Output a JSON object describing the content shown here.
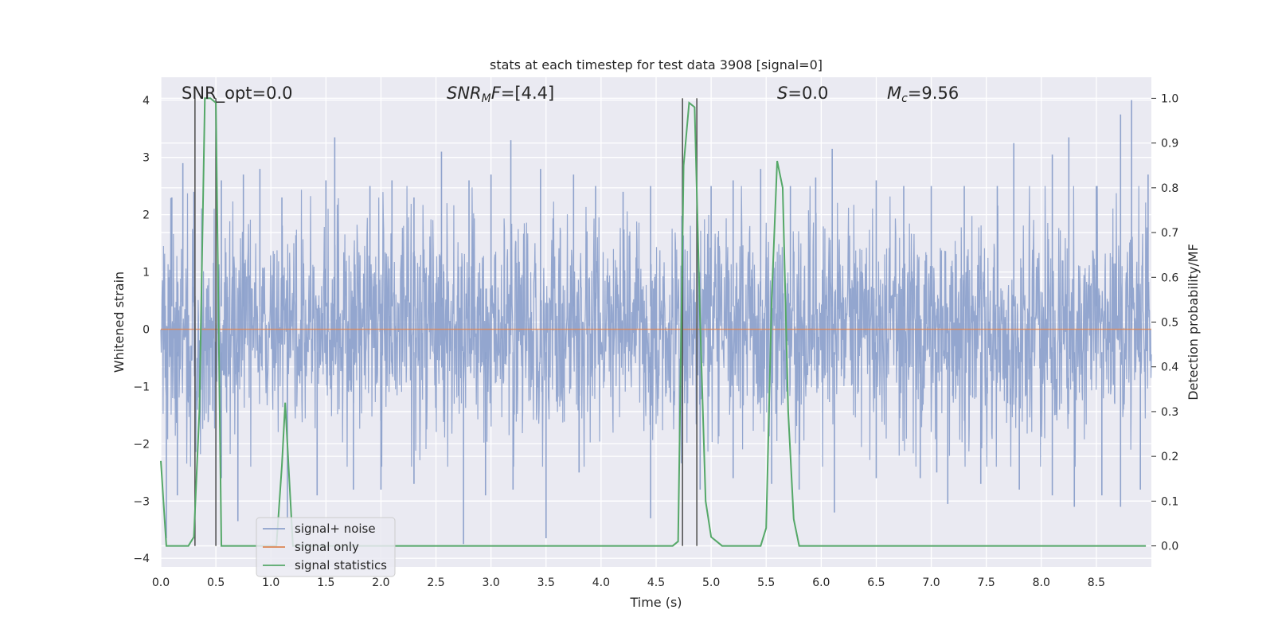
{
  "chart_data": {
    "type": "line",
    "title": "stats at each timestep for test data 3908 [signal=0]",
    "xlabel": "Time (s)",
    "ylabel_left": "Whitened strain",
    "ylabel_right": "Detection probability/MF",
    "xlim": [
      0.0,
      9.0
    ],
    "ylim_left": [
      -4.15,
      4.4
    ],
    "ylim_right": [
      -0.047,
      1.047
    ],
    "x_ticks": [
      "0.0",
      "0.5",
      "1.0",
      "1.5",
      "2.0",
      "2.5",
      "3.0",
      "3.5",
      "4.0",
      "4.5",
      "5.0",
      "5.5",
      "6.0",
      "6.5",
      "7.0",
      "7.5",
      "8.0",
      "8.5"
    ],
    "y_left_ticks": [
      "−4",
      "−3",
      "−2",
      "−1",
      "0",
      "1",
      "2",
      "3",
      "4"
    ],
    "y_right_ticks": [
      "0.0",
      "0.1",
      "0.2",
      "0.3",
      "0.4",
      "0.5",
      "0.6",
      "0.7",
      "0.8",
      "0.9",
      "1.0"
    ],
    "grid": true,
    "legend_position": "lower-left",
    "colors": {
      "background": "#eaeaf2",
      "grid": "#ffffff",
      "noise": "#8ea2cc",
      "signal_only": "#dd8452",
      "statistics": "#55a868",
      "markers": "#555555"
    },
    "annotations": [
      {
        "id": "snr_opt",
        "parts": [
          {
            "text": "SNR_opt=0.0",
            "italic": false
          }
        ]
      },
      {
        "id": "snr_mf",
        "parts": [
          {
            "text": "SNR",
            "italic": true
          },
          {
            "text": "M",
            "italic": true,
            "sub": true
          },
          {
            "text": "F",
            "italic": true
          },
          {
            "text": "=[4.4]",
            "italic": false
          }
        ]
      },
      {
        "id": "s_value",
        "parts": [
          {
            "text": "S",
            "italic": true
          },
          {
            "text": "=0.0",
            "italic": false
          }
        ]
      },
      {
        "id": "mc_value",
        "parts": [
          {
            "text": "M",
            "italic": true
          },
          {
            "text": "c",
            "italic": true,
            "sub": true
          },
          {
            "text": "=9.56",
            "italic": false
          }
        ]
      }
    ],
    "series": [
      {
        "name": "signal+ noise",
        "axis": "left",
        "style": "dense-noise",
        "amplitude_envelope": {
          "positive_typical": [
            1.7,
            2.6
          ],
          "negative_typical": [
            -1.5,
            -2.5
          ],
          "spikes_high": [
            [
              0.1,
              2.3
            ],
            [
              0.2,
              2.9
            ],
            [
              0.3,
              2.4
            ],
            [
              0.55,
              2.6
            ],
            [
              0.75,
              2.7
            ],
            [
              0.9,
              2.8
            ],
            [
              1.1,
              2.3
            ],
            [
              1.5,
              2.6
            ],
            [
              1.58,
              3.35
            ],
            [
              1.9,
              2.5
            ],
            [
              2.1,
              2.6
            ],
            [
              2.3,
              2.3
            ],
            [
              2.55,
              3.1
            ],
            [
              2.8,
              2.6
            ],
            [
              3.0,
              2.7
            ],
            [
              3.18,
              3.3
            ],
            [
              3.45,
              2.8
            ],
            [
              3.75,
              2.7
            ],
            [
              3.95,
              2.5
            ],
            [
              4.2,
              2.4
            ],
            [
              4.45,
              2.5
            ],
            [
              4.74,
              2.85
            ],
            [
              5.0,
              2.5
            ],
            [
              5.2,
              2.6
            ],
            [
              5.45,
              2.8
            ],
            [
              5.72,
              2.5
            ],
            [
              5.95,
              2.65
            ],
            [
              6.1,
              3.15
            ],
            [
              6.5,
              2.6
            ],
            [
              6.75,
              2.5
            ],
            [
              7.0,
              2.5
            ],
            [
              7.3,
              2.5
            ],
            [
              7.6,
              2.5
            ],
            [
              7.75,
              3.25
            ],
            [
              8.1,
              3.05
            ],
            [
              8.25,
              3.35
            ],
            [
              8.5,
              2.5
            ],
            [
              8.72,
              3.75
            ],
            [
              8.82,
              4.0
            ],
            [
              8.97,
              2.7
            ]
          ],
          "spikes_low": [
            [
              0.05,
              -3.65
            ],
            [
              0.15,
              -2.9
            ],
            [
              0.55,
              -2.6
            ],
            [
              0.7,
              -3.35
            ],
            [
              1.15,
              -3.3
            ],
            [
              1.42,
              -2.9
            ],
            [
              1.75,
              -2.8
            ],
            [
              2.0,
              -2.8
            ],
            [
              2.3,
              -2.7
            ],
            [
              2.75,
              -3.75
            ],
            [
              2.95,
              -2.9
            ],
            [
              3.2,
              -2.8
            ],
            [
              3.5,
              -3.65
            ],
            [
              3.8,
              -2.5
            ],
            [
              4.45,
              -3.3
            ],
            [
              4.9,
              -2.8
            ],
            [
              5.2,
              -2.6
            ],
            [
              5.55,
              -2.7
            ],
            [
              5.8,
              -2.8
            ],
            [
              6.12,
              -3.2
            ],
            [
              6.5,
              -2.6
            ],
            [
              6.9,
              -2.6
            ],
            [
              7.05,
              -2.5
            ],
            [
              7.15,
              -3.05
            ],
            [
              7.45,
              -2.7
            ],
            [
              7.8,
              -2.8
            ],
            [
              8.1,
              -2.9
            ],
            [
              8.3,
              -3.1
            ],
            [
              8.55,
              -2.9
            ],
            [
              8.72,
              -3.1
            ],
            [
              8.9,
              -2.8
            ]
          ]
        }
      },
      {
        "name": "signal only",
        "axis": "left",
        "x": [
          0.0,
          9.0
        ],
        "values": [
          0.0,
          0.0
        ]
      },
      {
        "name": "signal statistics",
        "axis": "right",
        "x": [
          0.0,
          0.05,
          0.1,
          0.15,
          0.2,
          0.25,
          0.3,
          0.35,
          0.4,
          0.45,
          0.5,
          0.55,
          0.6,
          0.65,
          0.7,
          0.8,
          0.9,
          1.0,
          1.05,
          1.1,
          1.13,
          1.16,
          1.2,
          1.25,
          1.3,
          1.5,
          2.0,
          3.0,
          4.0,
          4.4,
          4.45,
          4.5,
          4.55,
          4.6,
          4.65,
          4.7,
          4.75,
          4.8,
          4.85,
          4.9,
          4.95,
          5.0,
          5.05,
          5.1,
          5.2,
          5.3,
          5.4,
          5.45,
          5.5,
          5.55,
          5.6,
          5.65,
          5.7,
          5.75,
          5.8,
          5.9,
          6.0,
          7.0,
          8.0,
          8.95
        ],
        "values": [
          0.19,
          0.0,
          0.0,
          0.0,
          0.0,
          0.0,
          0.02,
          0.3,
          1.0,
          1.0,
          0.99,
          0.0,
          0.0,
          0.0,
          0.0,
          0.0,
          0.0,
          0.0,
          0.0,
          0.18,
          0.32,
          0.18,
          0.0,
          0.0,
          0.0,
          0.0,
          0.0,
          0.0,
          0.0,
          0.0,
          0.0,
          0.0,
          0.0,
          0.0,
          0.0,
          0.01,
          0.85,
          0.99,
          0.98,
          0.5,
          0.1,
          0.02,
          0.01,
          0.0,
          0.0,
          0.0,
          0.0,
          0.0,
          0.04,
          0.55,
          0.86,
          0.8,
          0.3,
          0.06,
          0.0,
          0.0,
          0.0,
          0.0,
          0.0,
          0.0
        ]
      }
    ],
    "markers_x": [
      0.31,
      0.5,
      4.74,
      4.87
    ]
  }
}
